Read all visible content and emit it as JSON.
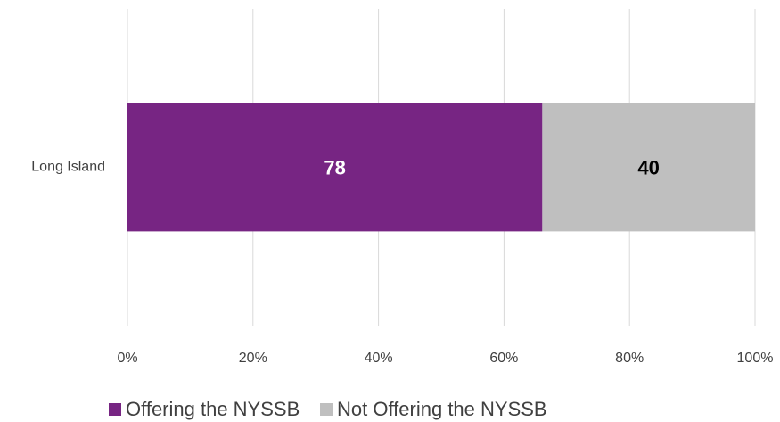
{
  "chart_data": {
    "type": "bar",
    "orientation": "horizontal",
    "stacked": true,
    "normalize": true,
    "categories": [
      "Long Island"
    ],
    "series": [
      {
        "name": "Offering the NYSSB",
        "color": "#772583",
        "values": [
          78
        ]
      },
      {
        "name": "Not Offering the NYSSB",
        "color": "#bfbfbf",
        "values": [
          40
        ]
      }
    ],
    "xlim": [
      0,
      100
    ],
    "xticks": [
      {
        "value": 0,
        "label": "0%"
      },
      {
        "value": 20,
        "label": "20%"
      },
      {
        "value": 40,
        "label": "40%"
      },
      {
        "value": 60,
        "label": "60%"
      },
      {
        "value": 80,
        "label": "80%"
      },
      {
        "value": 100,
        "label": "100%"
      }
    ],
    "grid": true,
    "legend": "bottom"
  }
}
